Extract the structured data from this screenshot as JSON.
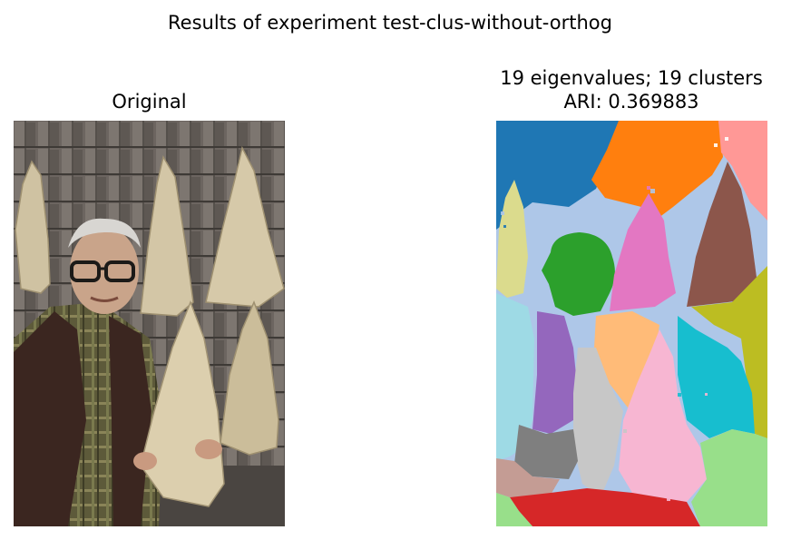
{
  "figure": {
    "suptitle": "Results of experiment test-clus-without-orthog"
  },
  "left_panel": {
    "title": "Original"
  },
  "right_panel": {
    "title_line1": "19 eigenvalues; 19 clusters",
    "title_line2": "ARI: 0.369883"
  },
  "colors": {
    "background": "#ffffff",
    "cluster_palette": [
      "#1f77b4",
      "#ff7f0e",
      "#ff9896",
      "#aec7e8",
      "#dbdb8d",
      "#2ca02c",
      "#e377c2",
      "#8c564b",
      "#bcbd22",
      "#9edae5",
      "#9467bd",
      "#ffbb78",
      "#c7c7c7",
      "#17becf",
      "#f7b6d2",
      "#7f7f7f",
      "#c49c94",
      "#d62728",
      "#98df8a"
    ]
  }
}
